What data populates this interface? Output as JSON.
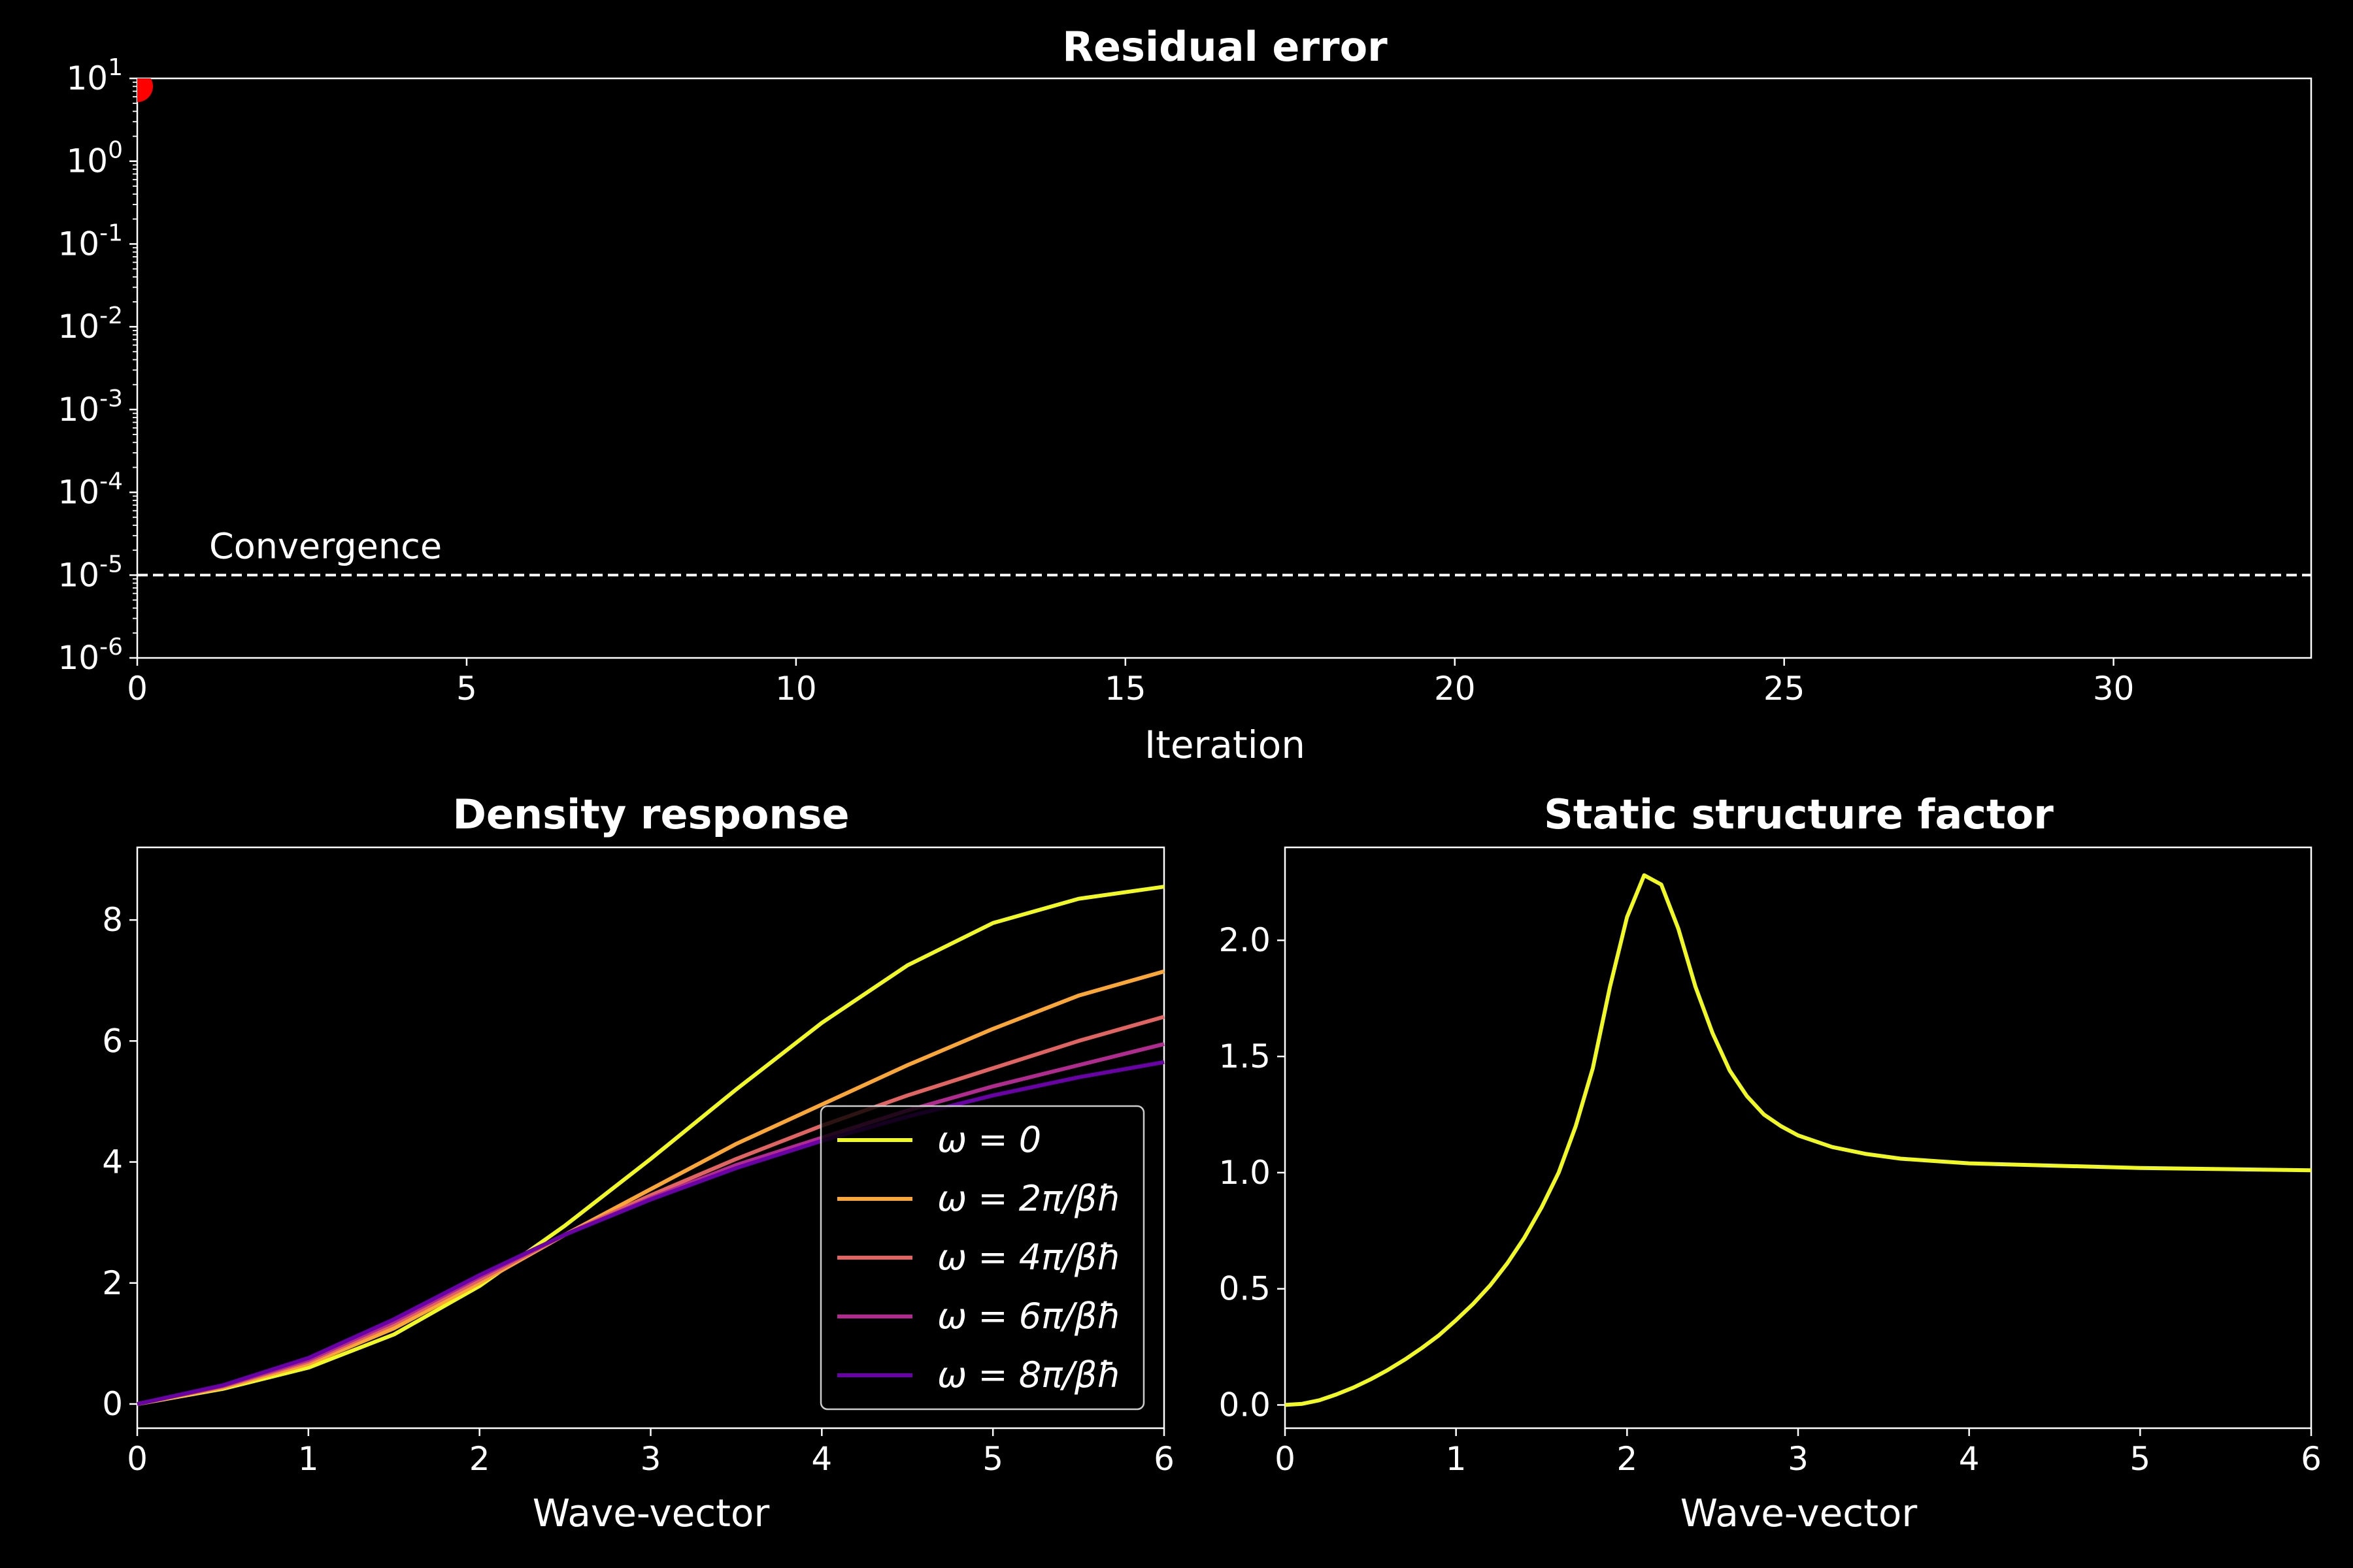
{
  "chart_data": [
    {
      "type": "scatter",
      "title": "Residual error",
      "xlabel": "Iteration",
      "ylabel": "",
      "xlim": [
        0,
        33
      ],
      "ylim_log10": [
        -6,
        1
      ],
      "yscale": "log",
      "xticks": [
        0,
        5,
        10,
        15,
        20,
        25,
        30
      ],
      "yticks": [
        "10^1",
        "10^0",
        "10^-1",
        "10^-2",
        "10^-3",
        "10^-4",
        "10^-5",
        "10^-6"
      ],
      "points": [
        {
          "x": 0,
          "y": 8,
          "color": "#ff0000"
        }
      ],
      "threshold": {
        "y": 1e-05,
        "label": "Convergence",
        "style": "dashed",
        "color": "#ffffff"
      }
    },
    {
      "type": "line",
      "title": "Density response",
      "xlabel": "Wave-vector",
      "ylabel": "",
      "xlim": [
        0,
        6
      ],
      "ylim": [
        -0.4,
        9.2
      ],
      "xticks": [
        0,
        1,
        2,
        3,
        4,
        5,
        6
      ],
      "yticks": [
        0,
        2,
        4,
        6,
        8
      ],
      "legend_position": "lower-right",
      "x": [
        0,
        0.5,
        1,
        1.5,
        2,
        2.5,
        3,
        3.5,
        4,
        4.5,
        5,
        5.5,
        6
      ],
      "series": [
        {
          "name": "ω = 0",
          "color": "#f0f921",
          "values": [
            0,
            0.25,
            0.6,
            1.15,
            1.95,
            2.95,
            4.05,
            5.2,
            6.3,
            7.25,
            7.95,
            8.35,
            8.55
          ]
        },
        {
          "name": "ω = 2π/βħ",
          "color": "#fca636",
          "values": [
            0,
            0.27,
            0.66,
            1.25,
            2.0,
            2.8,
            3.55,
            4.3,
            4.95,
            5.6,
            6.2,
            6.75,
            7.15
          ]
        },
        {
          "name": "ω = 4π/βħ",
          "color": "#e16462",
          "values": [
            0,
            0.29,
            0.7,
            1.32,
            2.05,
            2.8,
            3.45,
            4.05,
            4.6,
            5.1,
            5.55,
            6.0,
            6.4
          ]
        },
        {
          "name": "ω = 6π/βħ",
          "color": "#b12a90",
          "values": [
            0,
            0.3,
            0.73,
            1.36,
            2.1,
            2.8,
            3.4,
            3.95,
            4.4,
            4.85,
            5.25,
            5.6,
            5.95
          ]
        },
        {
          "name": "ω = 8π/βħ",
          "color": "#6a00a8",
          "values": [
            0,
            0.31,
            0.76,
            1.4,
            2.13,
            2.8,
            3.38,
            3.9,
            4.35,
            4.75,
            5.1,
            5.4,
            5.65
          ]
        }
      ]
    },
    {
      "type": "line",
      "title": "Static structure factor",
      "xlabel": "Wave-vector",
      "ylabel": "",
      "xlim": [
        0,
        6
      ],
      "ylim": [
        -0.1,
        2.4
      ],
      "xticks": [
        0,
        1,
        2,
        3,
        4,
        5,
        6
      ],
      "yticks": [
        "0.0",
        "0.5",
        "1.0",
        "1.5",
        "2.0"
      ],
      "series": [
        {
          "name": "",
          "color": "#f0f921",
          "x": [
            0,
            0.1,
            0.2,
            0.3,
            0.4,
            0.5,
            0.6,
            0.7,
            0.8,
            0.9,
            1.0,
            1.1,
            1.2,
            1.3,
            1.4,
            1.5,
            1.6,
            1.7,
            1.8,
            1.9,
            2.0,
            2.1,
            2.2,
            2.3,
            2.4,
            2.5,
            2.6,
            2.7,
            2.8,
            2.9,
            3.0,
            3.2,
            3.4,
            3.6,
            3.8,
            4.0,
            4.5,
            5.0,
            5.5,
            6.0
          ],
          "values": [
            0,
            0.005,
            0.02,
            0.045,
            0.075,
            0.11,
            0.15,
            0.195,
            0.245,
            0.3,
            0.365,
            0.435,
            0.515,
            0.61,
            0.72,
            0.85,
            1.0,
            1.2,
            1.45,
            1.8,
            2.1,
            2.28,
            2.24,
            2.05,
            1.8,
            1.6,
            1.44,
            1.33,
            1.25,
            1.2,
            1.16,
            1.11,
            1.08,
            1.06,
            1.05,
            1.04,
            1.03,
            1.02,
            1.015,
            1.01
          ]
        }
      ]
    }
  ],
  "colors": {
    "background": "#000000",
    "foreground": "#ffffff",
    "marker": "#ff0000"
  }
}
